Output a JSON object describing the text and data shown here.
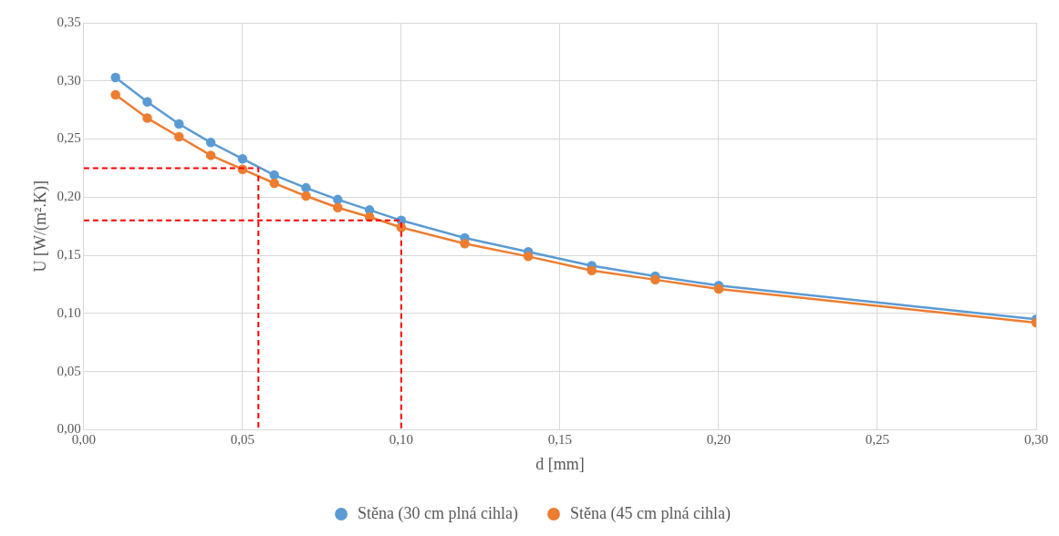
{
  "chart_data": {
    "type": "line",
    "xlabel": "d [mm]",
    "ylabel": "U [W/(m².K)]",
    "xlim": [
      0,
      0.3
    ],
    "xticks": [
      {
        "value": 0,
        "label": "0,00"
      },
      {
        "value": 0.05,
        "label": "0,05"
      },
      {
        "value": 0.1,
        "label": "0,10"
      },
      {
        "value": 0.15,
        "label": "0,15"
      },
      {
        "value": 0.2,
        "label": "0,20"
      },
      {
        "value": 0.25,
        "label": "0,25"
      },
      {
        "value": 0.3,
        "label": "0,30"
      }
    ],
    "ylim": [
      0,
      0.35
    ],
    "yticks": [
      {
        "value": 0,
        "label": "0,00"
      },
      {
        "value": 0.05,
        "label": "0,05"
      },
      {
        "value": 0.1,
        "label": "0,10"
      },
      {
        "value": 0.15,
        "label": "0,15"
      },
      {
        "value": 0.2,
        "label": "0,20"
      },
      {
        "value": 0.25,
        "label": "0,25"
      },
      {
        "value": 0.3,
        "label": "0,30"
      },
      {
        "value": 0.35,
        "label": "0,35"
      }
    ],
    "grid": true,
    "legend": "bottom",
    "marker": "circle",
    "line_style": "solid",
    "x": [
      0.01,
      0.02,
      0.03,
      0.04,
      0.05,
      0.06,
      0.07,
      0.08,
      0.09,
      0.1,
      0.12,
      0.14,
      0.16,
      0.18,
      0.2,
      0.3
    ],
    "series": [
      {
        "name": "Stěna (30 cm plná cihla)",
        "color": "#5b9bd5",
        "values": [
          0.303,
          0.282,
          0.263,
          0.247,
          0.233,
          0.219,
          0.208,
          0.198,
          0.189,
          0.18,
          0.165,
          0.153,
          0.141,
          0.132,
          0.124,
          0.095
        ]
      },
      {
        "name": "Stěna (45 cm plná cihla)",
        "color": "#ed7d31",
        "values": [
          0.288,
          0.268,
          0.252,
          0.236,
          0.224,
          0.212,
          0.201,
          0.191,
          0.183,
          0.174,
          0.16,
          0.149,
          0.137,
          0.129,
          0.121,
          0.092
        ]
      },
      {
        "type": "line",
        "color": "#ff0000",
        "marker": "none",
        "line_style": "dashed",
        "x": [
          0,
          0.055,
          0.055
        ],
        "values": [
          0.225,
          0.225,
          0
        ]
      },
      {
        "type": "line",
        "color": "#ff0000",
        "marker": "none",
        "line_style": "dashed",
        "x": [
          0,
          0.1,
          0.1
        ],
        "values": [
          0.18,
          0.18,
          0
        ]
      }
    ]
  }
}
